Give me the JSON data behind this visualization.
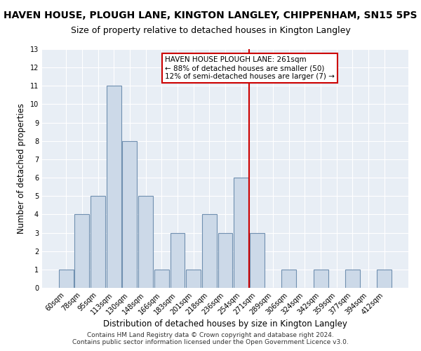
{
  "title": "HAVEN HOUSE, PLOUGH LANE, KINGTON LANGLEY, CHIPPENHAM, SN15 5PS",
  "subtitle": "Size of property relative to detached houses in Kington Langley",
  "xlabel": "Distribution of detached houses by size in Kington Langley",
  "ylabel": "Number of detached properties",
  "categories": [
    "60sqm",
    "78sqm",
    "95sqm",
    "113sqm",
    "130sqm",
    "148sqm",
    "166sqm",
    "183sqm",
    "201sqm",
    "218sqm",
    "236sqm",
    "254sqm",
    "271sqm",
    "289sqm",
    "306sqm",
    "324sqm",
    "342sqm",
    "359sqm",
    "377sqm",
    "394sqm",
    "412sqm"
  ],
  "values": [
    1,
    4,
    5,
    11,
    8,
    5,
    1,
    3,
    1,
    4,
    3,
    6,
    3,
    0,
    1,
    0,
    1,
    0,
    1,
    0,
    1
  ],
  "bar_color": "#ccd9e8",
  "bar_edge_color": "#7090b0",
  "background_color": "#e8eef5",
  "annotation_text": "HAVEN HOUSE PLOUGH LANE: 261sqm\n← 88% of detached houses are smaller (50)\n12% of semi-detached houses are larger (7) →",
  "annotation_box_color": "#cc0000",
  "ylim": [
    0,
    13
  ],
  "yticks": [
    0,
    1,
    2,
    3,
    4,
    5,
    6,
    7,
    8,
    9,
    10,
    11,
    12,
    13
  ],
  "footer": "Contains HM Land Registry data © Crown copyright and database right 2024.\nContains public sector information licensed under the Open Government Licence v3.0.",
  "title_fontsize": 10,
  "subtitle_fontsize": 9,
  "xlabel_fontsize": 8.5,
  "ylabel_fontsize": 8.5,
  "tick_fontsize": 7,
  "footer_fontsize": 6.5,
  "annotation_fontsize": 7.5
}
